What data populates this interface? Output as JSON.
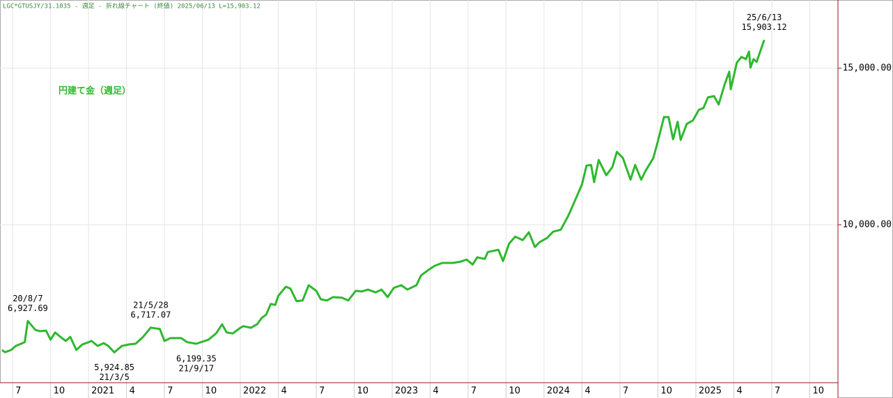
{
  "chart_data": {
    "type": "line",
    "title": "LGC*GTUSJY/31.1035 - 週足 - 折れ線チャート (終値)  2025/06/13 L=15,903.12",
    "xlim": [
      2020.417,
      2025.936
    ],
    "ylim": [
      4956,
      17178
    ],
    "grid": true,
    "xticks": [
      {
        "value": 2020.5,
        "label": "7"
      },
      {
        "value": 2020.75,
        "label": "10"
      },
      {
        "value": 2021,
        "label": "2021"
      },
      {
        "value": 2021.25,
        "label": "4"
      },
      {
        "value": 2021.5,
        "label": "7"
      },
      {
        "value": 2021.75,
        "label": "10"
      },
      {
        "value": 2022,
        "label": "2022"
      },
      {
        "value": 2022.25,
        "label": "4"
      },
      {
        "value": 2022.5,
        "label": "7"
      },
      {
        "value": 2022.75,
        "label": "10"
      },
      {
        "value": 2023,
        "label": "2023"
      },
      {
        "value": 2023.25,
        "label": "4"
      },
      {
        "value": 2023.5,
        "label": "7"
      },
      {
        "value": 2023.75,
        "label": "10"
      },
      {
        "value": 2024,
        "label": "2024"
      },
      {
        "value": 2024.25,
        "label": "4"
      },
      {
        "value": 2024.5,
        "label": "7"
      },
      {
        "value": 2024.75,
        "label": "10"
      },
      {
        "value": 2025,
        "label": "2025"
      },
      {
        "value": 2025.25,
        "label": "4"
      },
      {
        "value": 2025.5,
        "label": "7"
      },
      {
        "value": 2025.75,
        "label": "10"
      }
    ],
    "yticks": [
      {
        "value": 10000,
        "label": "10,000.00"
      },
      {
        "value": 15000,
        "label": "15,000.00"
      }
    ],
    "x": [
      2020.43,
      2020.45,
      2020.49,
      2020.52,
      2020.58,
      2020.6,
      2020.65,
      2020.68,
      2020.72,
      2020.75,
      2020.78,
      2020.82,
      2020.85,
      2020.88,
      2020.92,
      2020.96,
      2021.0,
      2021.02,
      2021.06,
      2021.1,
      2021.13,
      2021.17,
      2021.22,
      2021.27,
      2021.31,
      2021.36,
      2021.41,
      2021.47,
      2021.5,
      2021.54,
      2021.61,
      2021.65,
      2021.71,
      2021.79,
      2021.84,
      2021.88,
      2021.91,
      2021.95,
      2022.0,
      2022.02,
      2022.07,
      2022.11,
      2022.14,
      2022.17,
      2022.2,
      2022.23,
      2022.25,
      2022.3,
      2022.33,
      2022.37,
      2022.41,
      2022.45,
      2022.5,
      2022.53,
      2022.57,
      2022.61,
      2022.67,
      2022.71,
      2022.76,
      2022.8,
      2022.84,
      2022.89,
      2022.93,
      2022.97,
      2023.01,
      2023.06,
      2023.1,
      2023.16,
      2023.19,
      2023.24,
      2023.28,
      2023.33,
      2023.4,
      2023.45,
      2023.49,
      2023.53,
      2023.56,
      2023.61,
      2023.63,
      2023.7,
      2023.73,
      2023.77,
      2023.81,
      2023.86,
      2023.9,
      2023.94,
      2023.97,
      2024.02,
      2024.06,
      2024.11,
      2024.16,
      2024.2,
      2024.25,
      2024.28,
      2024.31,
      2024.33,
      2024.36,
      2024.41,
      2024.45,
      2024.48,
      2024.52,
      2024.57,
      2024.6,
      2024.64,
      2024.67,
      2024.72,
      2024.75,
      2024.79,
      2024.82,
      2024.85,
      2024.88,
      2024.9,
      2024.94,
      2024.98,
      2025.02,
      2025.05,
      2025.08,
      2025.12,
      2025.15,
      2025.19,
      2025.22,
      2025.23,
      2025.27,
      2025.3,
      2025.33,
      2025.35,
      2025.36,
      2025.38,
      2025.4,
      2025.45
    ],
    "series": [
      {
        "name": "円建て金（週足）",
        "color": "#2eb82e",
        "values": [
          6000,
          5930,
          6000,
          6130,
          6250,
          6927.69,
          6640,
          6600,
          6620,
          6330,
          6560,
          6400,
          6290,
          6420,
          6000,
          6180,
          6250,
          6290,
          6130,
          6220,
          6130,
          5924.85,
          6130,
          6180,
          6200,
          6420,
          6717.07,
          6670,
          6290,
          6380,
          6380,
          6250,
          6199.35,
          6330,
          6530,
          6820,
          6560,
          6530,
          6710,
          6760,
          6710,
          6820,
          7020,
          7130,
          7470,
          7440,
          7730,
          8020,
          7960,
          7560,
          7580,
          8070,
          7890,
          7620,
          7580,
          7690,
          7670,
          7580,
          7890,
          7870,
          7930,
          7840,
          7930,
          7690,
          7980,
          8070,
          7930,
          8070,
          8380,
          8560,
          8690,
          8780,
          8780,
          8820,
          8890,
          8730,
          8960,
          8910,
          9130,
          9200,
          8840,
          9400,
          9620,
          9510,
          9760,
          9290,
          9440,
          9580,
          9780,
          9840,
          10290,
          10730,
          11290,
          11890,
          11910,
          11360,
          12070,
          11580,
          11840,
          12330,
          12130,
          11440,
          11910,
          11440,
          11730,
          12130,
          12670,
          13440,
          13440,
          12730,
          13290,
          12710,
          13220,
          13330,
          13670,
          13730,
          14070,
          14110,
          13840,
          14490,
          14890,
          14330,
          15180,
          15360,
          15290,
          15530,
          15020,
          15290,
          15200,
          15903.12
        ],
        "value_labels": [
          null,
          null,
          null,
          null,
          null,
          "6,927.69",
          null,
          null,
          null,
          null,
          null,
          null,
          null,
          null,
          null,
          null,
          null,
          null,
          null,
          null,
          null,
          "5,924.85",
          null,
          null,
          null,
          null,
          "6,717.07",
          null,
          null,
          null,
          null,
          null,
          "6,199.35",
          null,
          null,
          null,
          null,
          null,
          null,
          null,
          null,
          null,
          null,
          null,
          null,
          null,
          null,
          null,
          null,
          null,
          null,
          null,
          null,
          null,
          null,
          null,
          null,
          null,
          null,
          null,
          null,
          null,
          null,
          null,
          null,
          null,
          null,
          null,
          null,
          null,
          null,
          null,
          null,
          null,
          null,
          null,
          null,
          null,
          null,
          null,
          null,
          null,
          null,
          null,
          null,
          null,
          null,
          null,
          null,
          null,
          null,
          null,
          null,
          null,
          null,
          null,
          null,
          null,
          null,
          null,
          null,
          null,
          null,
          null,
          null,
          null,
          null,
          null,
          null,
          null,
          null,
          null,
          null,
          null,
          null,
          null,
          null,
          null,
          null,
          null,
          null,
          null,
          null,
          null,
          null,
          null,
          null,
          null,
          null,
          "15,903.12"
        ],
        "point_labels": [
          null,
          null,
          null,
          null,
          null,
          "20/8/7",
          null,
          null,
          null,
          null,
          null,
          null,
          null,
          null,
          null,
          null,
          null,
          null,
          null,
          null,
          null,
          "21/3/5",
          null,
          null,
          null,
          null,
          "21/5/28",
          null,
          null,
          null,
          null,
          null,
          "21/9/17",
          null,
          null,
          null,
          null,
          null,
          null,
          null,
          null,
          null,
          null,
          null,
          null,
          null,
          null,
          null,
          null,
          null,
          null,
          null,
          null,
          null,
          null,
          null,
          null,
          null,
          null,
          null,
          null,
          null,
          null,
          null,
          null,
          null,
          null,
          null,
          null,
          null,
          null,
          null,
          null,
          null,
          null,
          null,
          null,
          null,
          null,
          null,
          null,
          null,
          null,
          null,
          null,
          null,
          null,
          null,
          null,
          null,
          null,
          null,
          null,
          null,
          null,
          null,
          null,
          null,
          null,
          null,
          null,
          null,
          null,
          null,
          null,
          null,
          null,
          null,
          null,
          null,
          null,
          null,
          null,
          null,
          null,
          null,
          null,
          null,
          null,
          null,
          null,
          null,
          null,
          null,
          null,
          null,
          null,
          null,
          null,
          "25/6/13"
        ]
      }
    ]
  }
}
